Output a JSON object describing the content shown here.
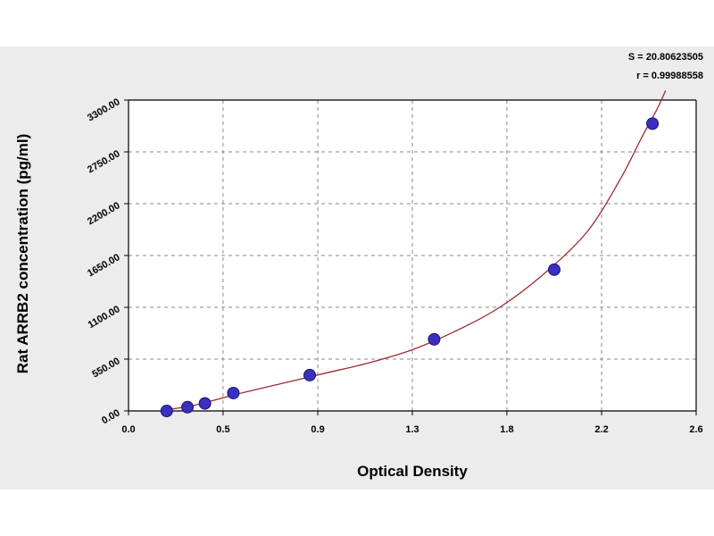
{
  "chart_data": {
    "type": "scatter",
    "title": "",
    "xlabel": "Optical Density",
    "ylabel": "Rat ARRB2 concentration (pg/ml)",
    "xlim": [
      0.0,
      2.6
    ],
    "ylim": [
      0,
      3300
    ],
    "x_ticks": [
      "0.0",
      "0.5",
      "0.9",
      "1.3",
      "1.8",
      "2.2",
      "2.6"
    ],
    "x_tick_values": [
      0.0,
      0.433,
      0.867,
      1.3,
      1.733,
      2.167,
      2.6
    ],
    "y_ticks": [
      "0.00",
      "550.00",
      "1100.00",
      "1650.00",
      "2200.00",
      "2750.00",
      "3300.00"
    ],
    "y_tick_values": [
      0,
      550,
      1100,
      1650,
      2200,
      2750,
      3300
    ],
    "grid": true,
    "series": [
      {
        "x": [
          0.175,
          0.27,
          0.35,
          0.48,
          0.83,
          1.4,
          1.95,
          2.4
        ],
        "y": [
          0,
          40,
          80,
          190,
          380,
          760,
          1500,
          3050
        ],
        "color": "#3b2fbf"
      }
    ],
    "fit_curve": {
      "x": [
        0.17,
        0.3,
        0.5,
        0.7,
        0.9,
        1.1,
        1.3,
        1.5,
        1.7,
        1.9,
        2.1,
        2.25,
        2.35,
        2.42,
        2.46
      ],
      "y": [
        10,
        60,
        180,
        290,
        400,
        510,
        650,
        850,
        1100,
        1450,
        1900,
        2450,
        2900,
        3200,
        3400
      ],
      "color": "#9e2b33"
    },
    "annotations": [
      "S = 20.80623505",
      "r = 0.99988558"
    ]
  }
}
